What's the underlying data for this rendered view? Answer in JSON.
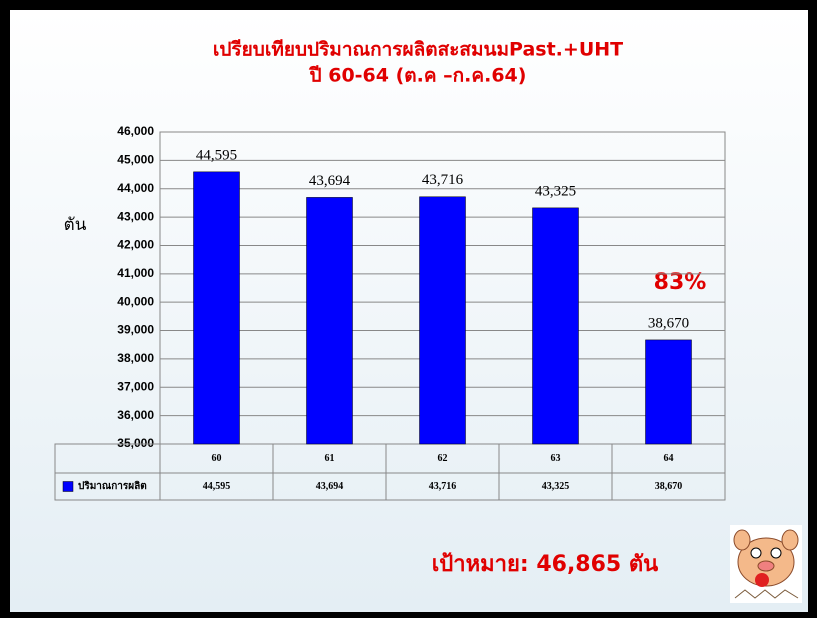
{
  "chart_data": {
    "type": "bar",
    "title": "เปรียบเทียบปริมาณการผลิตสะสมนมPast.+UHT",
    "subtitle": "ปี 60-64 (ต.ค –ก.ค.64)",
    "y_label": "ตัน",
    "categories": [
      "60",
      "61",
      "62",
      "63",
      "64"
    ],
    "series": [
      {
        "name": "ปริมาณการผลิต",
        "color": "#0000ff",
        "values": [
          44595,
          43694,
          43716,
          43325,
          38670
        ],
        "value_labels": [
          "44,595",
          "43,694",
          "43,716",
          "43,325",
          "38,670"
        ]
      }
    ],
    "ylim": [
      35000,
      46000
    ],
    "yticks": [
      {
        "value": 35000,
        "label": "35,000"
      },
      {
        "value": 36000,
        "label": "36,000"
      },
      {
        "value": 37000,
        "label": "37,000"
      },
      {
        "value": 38000,
        "label": "38,000"
      },
      {
        "value": 39000,
        "label": "39,000"
      },
      {
        "value": 40000,
        "label": "40,000"
      },
      {
        "value": 41000,
        "label": "41,000"
      },
      {
        "value": 42000,
        "label": "42,000"
      },
      {
        "value": 43000,
        "label": "43,000"
      },
      {
        "value": 44000,
        "label": "44,000"
      },
      {
        "value": 45000,
        "label": "45,000"
      },
      {
        "value": 46000,
        "label": "46,000"
      }
    ],
    "grid": true,
    "annotations": [
      "83%",
      "เป้าหมาย: 46,865 ตัน"
    ]
  }
}
